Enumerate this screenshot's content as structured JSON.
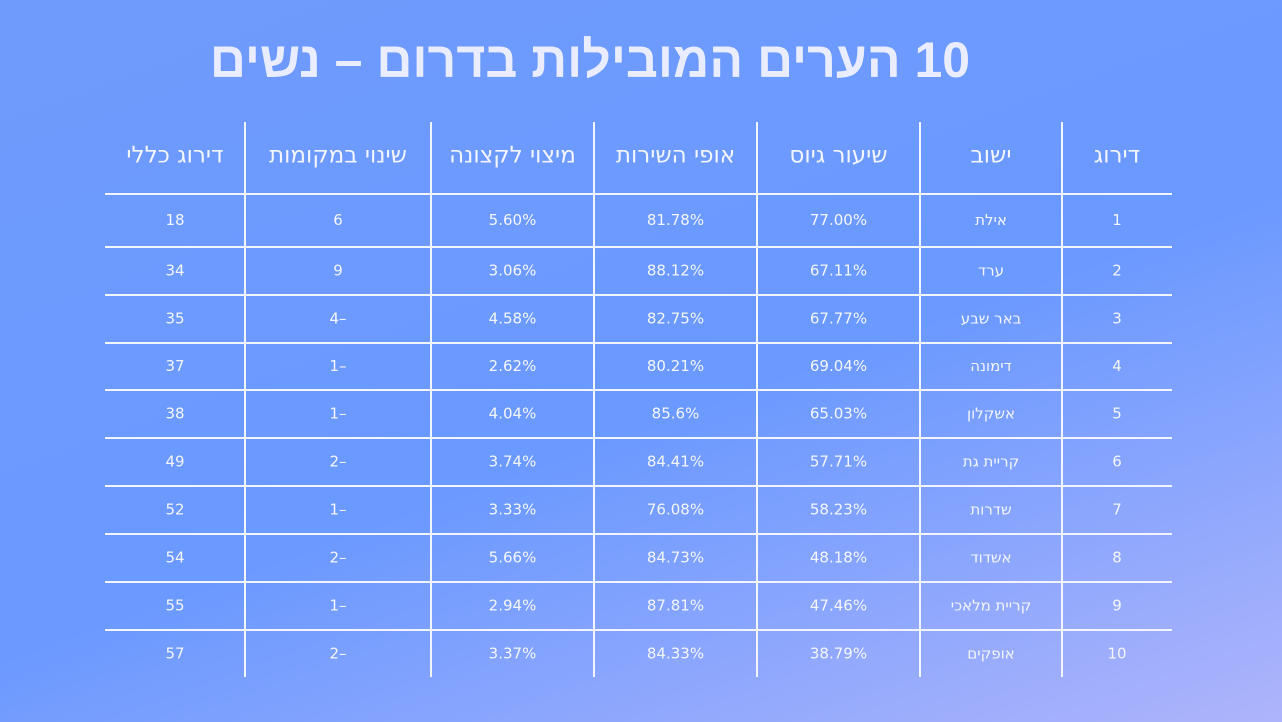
{
  "title": "10 הערים המובילות בדרום – נשים",
  "table": {
    "header": [
      "דירוג",
      "ישוב",
      "שיעור גיוס",
      "אופי השירות",
      "מיצוי לקצונה",
      "שינוי במקומות",
      "דירוג כללי"
    ],
    "rows": [
      [
        "1",
        "אילת",
        "77.00%",
        "81.78%",
        "5.60%",
        "6",
        "18"
      ],
      [
        "2",
        "ערד",
        "67.11%",
        "88.12%",
        "3.06%",
        "9",
        "34"
      ],
      [
        "3",
        "באר שבע",
        "67.77%",
        "82.75%",
        "4.58%",
        "–4",
        "35"
      ],
      [
        "4",
        "דימונה",
        "69.04%",
        "80.21%",
        "2.62%",
        "–1",
        "37"
      ],
      [
        "5",
        "אשקלון",
        "65.03%",
        "85.6%",
        "4.04%",
        "–1",
        "38"
      ],
      [
        "6",
        "קריית גת",
        "57.71%",
        "84.41%",
        "3.74%",
        "–2",
        "49"
      ],
      [
        "7",
        "שדרות",
        "58.23%",
        "76.08%",
        "3.33%",
        "–1",
        "52"
      ],
      [
        "8",
        "אשדוד",
        "48.18%",
        "84.73%",
        "5.66%",
        "–2",
        "54"
      ],
      [
        "9",
        "קריית מלאכי",
        "47.46%",
        "87.81%",
        "2.94%",
        "–1",
        "55"
      ],
      [
        "10",
        "אופקים",
        "38.79%",
        "84.33%",
        "3.37%",
        "–2",
        "57"
      ]
    ]
  }
}
